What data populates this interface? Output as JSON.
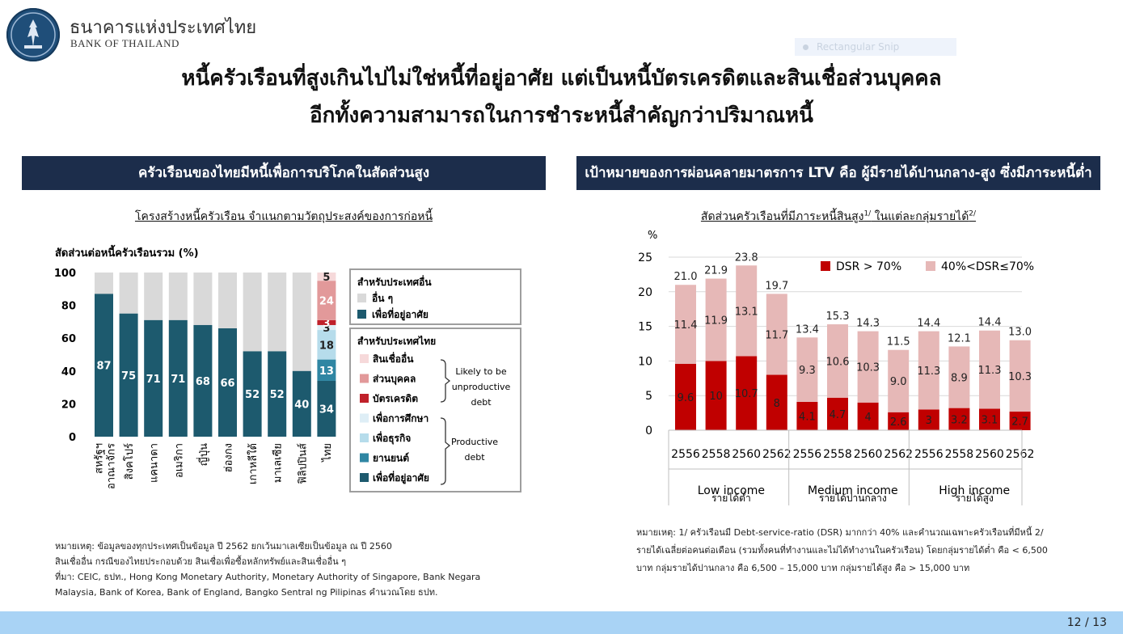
{
  "header": {
    "bank_name_th": "ธนาคารแห่งประเทศไทย",
    "bank_name_en": "BANK OF THAILAND",
    "snip_label": "Rectangular Snip"
  },
  "title": {
    "line1": "หนี้ครัวเรือนที่สูงเกินไปไม่ใช่หนี้ที่อยู่อาศัย แต่เป็นหนี้บัตรเครดิตและสินเชื่อส่วนบุคคล",
    "line2": "อีกทั้งความสามารถในการชำระหนี้สำคัญกว่าปริมาณหนี้"
  },
  "left_panel": {
    "banner": "ครัวเรือนของไทยมีหนี้เพื่อการบริโภคในสัดส่วนสูง",
    "subtitle": "โครงสร้างหนี้ครัวเรือน จำแนกตามวัตถุประสงค์ของการก่อหนี้",
    "notes": [
      "หมายเหตุ: ข้อมูลของทุกประเทศเป็นข้อมูล ปี 2562 ยกเว้นมาเลเซียเป็นข้อมูล ณ ปี 2560",
      "สินเชื่ออื่น กรณีของไทยประกอบด้วย สินเชื่อเพื่อซื้อหลักทรัพย์และสินเชื่ออื่น ๆ",
      "ที่มา: CEIC, ธปท., Hong Kong Monetary Authority, Monetary Authority of Singapore, Bank Negara",
      "Malaysia, Bank of Korea, Bank of England, Bangko Sentral ng Pilipinas คำนวณโดย ธปท."
    ]
  },
  "right_panel": {
    "banner": "เป้าหมายของการผ่อนคลายมาตรการ LTV คือ ผู้มีรายได้ปานกลาง-สูง ซึ่งมีภาระหนี้ต่ำ",
    "subtitle": "สัดส่วนครัวเรือนที่มีภาระหนี้สินสูง",
    "subtitle_sup1": "1/",
    "subtitle_mid": " ในแต่ละกลุ่มรายได้",
    "subtitle_sup2": "2/",
    "notes": [
      "หมายเหตุ: 1/ ครัวเรือนมี Debt-service-ratio (DSR) มากกว่า 40% และคำนวณเฉพาะครัวเรือนที่มีหนี้ 2/",
      "รายได้เฉลี่ยต่อคนต่อเดือน (รวมทั้งคนที่ทำงานและไม่ได้ทำงานในครัวเรือน) โดยกลุ่มรายได้ต่ำ คือ < 6,500",
      "บาท กลุ่มรายได้ปานกลาง คือ 6,500 – 15,000 บาท กลุ่มรายได้สูง คือ > 15,000 บาท"
    ]
  },
  "page_number": "12 / 13",
  "chart_data": [
    {
      "type": "bar",
      "stacked": true,
      "ylabel": "สัดส่วนต่อหนี้ครัวเรือนรวม (%)",
      "ylim": [
        0,
        100
      ],
      "yticks": [
        "0",
        "20",
        "40",
        "60",
        "80",
        "100"
      ],
      "categories": [
        "สหรัฐฯ",
        "อาณาจักร",
        "สิงคโปร์",
        "แคนาดา",
        "อเมริกา",
        "ญี่ปุ่น",
        "ฮ่องกง",
        "เกาหลีใต้",
        "มาเลเซีย",
        "ฟิลิปปินส์",
        "ไทย"
      ],
      "category_lines": [
        [
          "สหรัฐฯ",
          "อาณาจักร"
        ],
        [
          "สิงคโปร์"
        ],
        [
          "แคนาดา"
        ],
        [
          "อเมริกา"
        ],
        [
          "ญี่ปุ่น"
        ],
        [
          "ฮ่องกง"
        ],
        [
          "เกาหลีใต้"
        ],
        [
          "มาเลเซีย"
        ],
        [
          "ฟิลิปปินส์"
        ],
        [
          "ไทย"
        ]
      ],
      "other_countries": {
        "housing": [
          87,
          75,
          71,
          71,
          68,
          66,
          52,
          52,
          40
        ],
        "others": [
          13,
          25,
          29,
          29,
          32,
          34,
          48,
          48,
          60
        ]
      },
      "thailand": [
        {
          "name": "เพื่อที่อยู่อาศัย",
          "value": 34,
          "color": "#1d5a6e"
        },
        {
          "name": "ยานยนต์",
          "value": 13,
          "color": "#2f86a3"
        },
        {
          "name": "เพื่อธุรกิจ",
          "value": 18,
          "color": "#b6dceb"
        },
        {
          "name": "เพื่อการศึกษา",
          "value": 3,
          "color": "#deeef6"
        },
        {
          "name": "บัตรเครดิต",
          "value": 3,
          "color": "#c0212b"
        },
        {
          "name": "ส่วนบุคคล",
          "value": 24,
          "color": "#e2999a"
        },
        {
          "name": "สินเชื่ออื่น",
          "value": 5,
          "color": "#f6d9da"
        }
      ],
      "legend_other": {
        "title": "สำหรับประเทศอื่น",
        "items": [
          {
            "name": "อื่น ๆ",
            "color": "#d9d9d9"
          },
          {
            "name": "เพื่อที่อยู่อาศัย",
            "color": "#1d5a6e"
          }
        ]
      },
      "legend_thai": {
        "title": "สำหรับประเทศไทย",
        "items": [
          {
            "name": "สินเชื่ออื่น",
            "color": "#f6d9da"
          },
          {
            "name": "ส่วนบุคคล",
            "color": "#e2999a"
          },
          {
            "name": "บัตรเครดิต",
            "color": "#c0212b"
          },
          {
            "name": "เพื่อการศึกษา",
            "color": "#deeef6"
          },
          {
            "name": "เพื่อธุรกิจ",
            "color": "#b6dceb"
          },
          {
            "name": "ยานยนต์",
            "color": "#2f86a3"
          },
          {
            "name": "เพื่อที่อยู่อาศัย",
            "color": "#1d5a6e"
          }
        ],
        "group1_label": [
          "Likely to be",
          "unproductive",
          "debt"
        ],
        "group2_label": [
          "Productive",
          "debt"
        ]
      },
      "colors": {
        "housing": "#1d5a6e",
        "others": "#d9d9d9"
      }
    },
    {
      "type": "bar",
      "stacked": true,
      "yunit": "%",
      "ylim": [
        0,
        25
      ],
      "yticks": [
        "0",
        "5",
        "10",
        "15",
        "20",
        "25"
      ],
      "x": [
        "2556",
        "2558",
        "2560",
        "2562",
        "2556",
        "2558",
        "2560",
        "2562",
        "2556",
        "2558",
        "2560",
        "2562"
      ],
      "groups": [
        {
          "name_en": "Low income",
          "name_th": "รายได้ต่ำ"
        },
        {
          "name_en": "Medium income",
          "name_th": "รายได้ปานกลาง"
        },
        {
          "name_en": "High income",
          "name_th": "รายได้สูง"
        }
      ],
      "series": [
        {
          "name": "DSR > 70%",
          "color": "#c00000",
          "values": [
            9.6,
            10,
            10.7,
            8,
            4.1,
            4.7,
            4,
            2.6,
            3,
            3.2,
            3.1,
            2.7
          ],
          "labels": [
            "9.6",
            "10",
            "10.7",
            "8",
            "4.1",
            "4.7",
            "4",
            "2.6",
            "3",
            "3.2",
            "3.1",
            "2.7"
          ]
        },
        {
          "name": "40%<DSR≤70%",
          "color": "#e6b8b7",
          "values": [
            11.4,
            11.9,
            13.1,
            11.7,
            9.3,
            10.6,
            10.3,
            9.0,
            11.3,
            8.9,
            11.3,
            10.3
          ],
          "labels": [
            "11.4",
            "11.9",
            "13.1",
            "11.7",
            "9.3",
            "10.6",
            "10.3",
            "9.0",
            "11.3",
            "8.9",
            "11.3",
            "10.3"
          ]
        }
      ],
      "totals": [
        "21.0",
        "21.9",
        "23.8",
        "19.7",
        "13.4",
        "15.3",
        "14.3",
        "11.5",
        "14.4",
        "12.1",
        "14.4",
        "13.0"
      ],
      "legend_position": "top-right",
      "grid": true
    }
  ]
}
